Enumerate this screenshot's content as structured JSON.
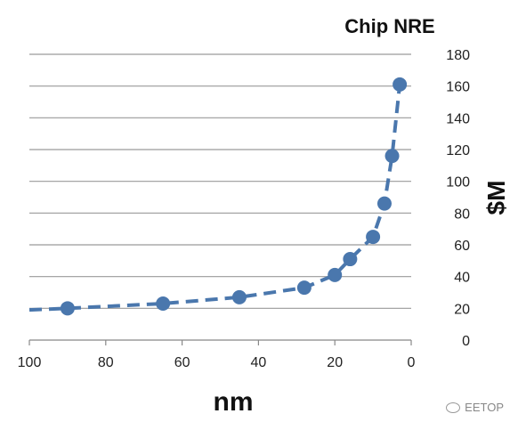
{
  "chart_data": {
    "type": "line",
    "title": "Chip NRE",
    "xlabel": "nm",
    "ylabel": "$M",
    "xlim": [
      100,
      0
    ],
    "x_reversed": true,
    "ylim": [
      0,
      180
    ],
    "x_ticks": [
      100,
      80,
      60,
      40,
      20,
      0
    ],
    "y_ticks": [
      0,
      20,
      40,
      60,
      80,
      100,
      120,
      140,
      160,
      180
    ],
    "grid": "horizontal",
    "y_axis_side": "right",
    "line_style": "dashed",
    "trend_start": {
      "x": 100,
      "y": 19
    },
    "series": [
      {
        "color": "#4a77ad",
        "x": [
          90,
          65,
          45,
          28,
          20,
          16,
          10,
          7,
          5,
          3
        ],
        "y": [
          20,
          23,
          27,
          33,
          41,
          51,
          65,
          86,
          116,
          161
        ]
      }
    ]
  },
  "watermark": "EETOP"
}
